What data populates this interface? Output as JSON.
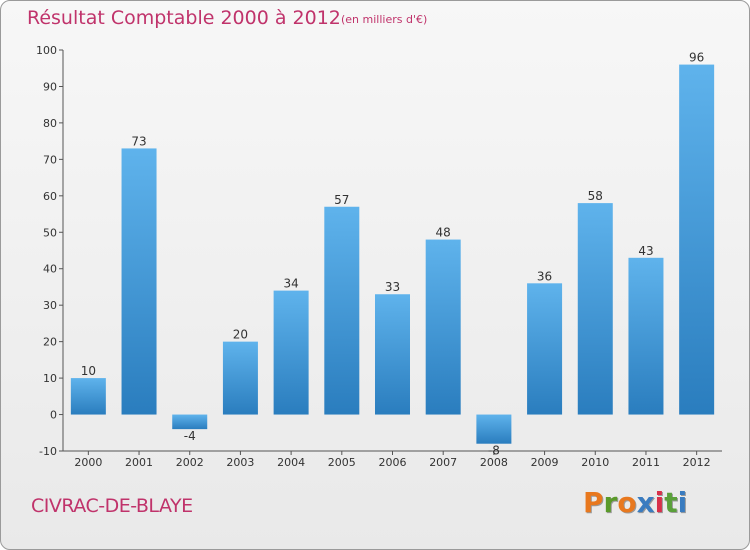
{
  "title": "Résultat Comptable 2000 à 2012",
  "subtitle": "(en milliers d'€)",
  "commune": "CIVRAC-DE-BLAYE",
  "logo": {
    "text": "Proxiti",
    "colors": [
      "#e8781e",
      "#5a9a2a",
      "#e8781e",
      "#3a7cc0",
      "#d8304a",
      "#5aa03a",
      "#3a7cc0"
    ]
  },
  "chart_data": {
    "type": "bar",
    "title": "Résultat Comptable 2000 à 2012",
    "subtitle": "(en milliers d'€)",
    "xlabel": "",
    "ylabel": "",
    "categories": [
      "2000",
      "2001",
      "2002",
      "2003",
      "2004",
      "2005",
      "2006",
      "2007",
      "2008",
      "2009",
      "2010",
      "2011",
      "2012"
    ],
    "values": [
      10,
      73,
      -4,
      20,
      34,
      57,
      33,
      48,
      -8,
      36,
      58,
      43,
      96
    ],
    "ylim": [
      -10,
      100
    ],
    "yticks": [
      -10,
      0,
      10,
      20,
      30,
      40,
      50,
      60,
      70,
      80,
      90,
      100
    ],
    "grid": false,
    "bar_color": "#4a9ad8"
  }
}
